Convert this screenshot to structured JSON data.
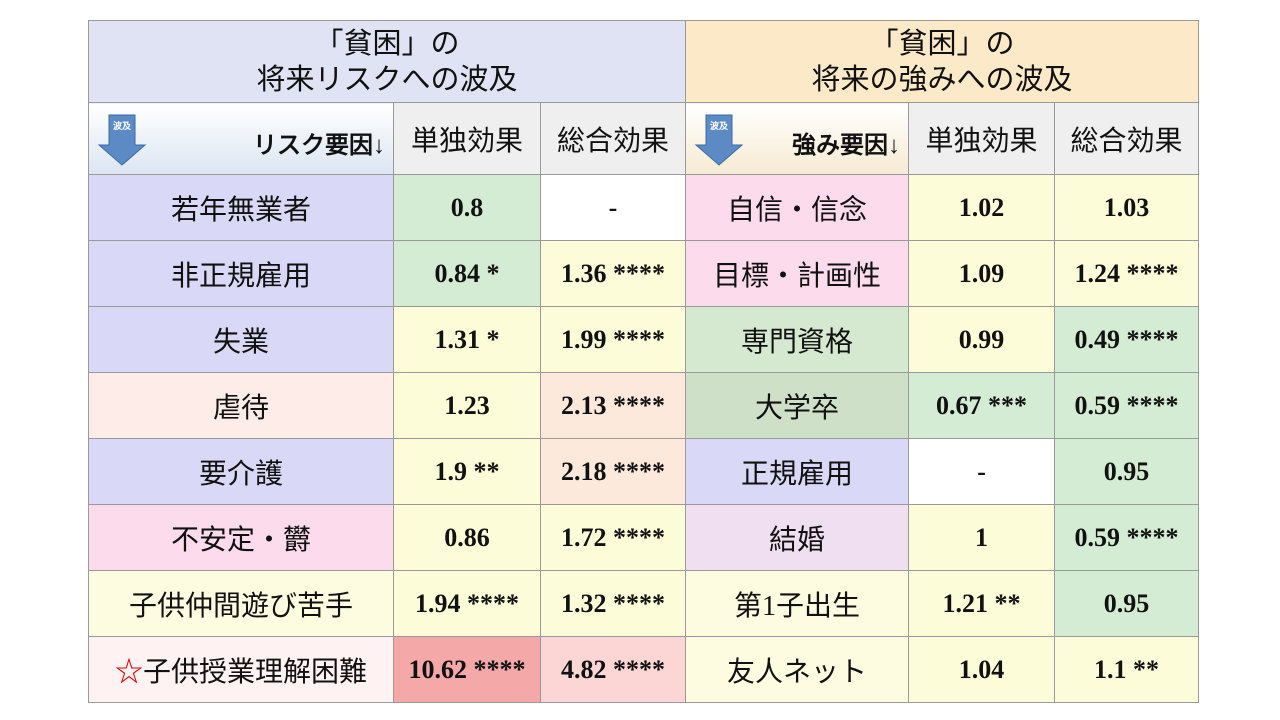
{
  "header": {
    "left_title": [
      "「貧困」の",
      "将来リスクへの波及"
    ],
    "right_title": [
      "「貧困」の",
      "将来の強みへの波及"
    ]
  },
  "subheader": {
    "left_icon": "波及",
    "left_factor": "リスク要因↓",
    "left_solo": "単独効果",
    "left_total": "総合効果",
    "right_icon": "波及",
    "right_factor": "強み要因↓",
    "right_solo": "単独効果",
    "right_total": "総合効果"
  },
  "table": {
    "rows": [
      {
        "cells": [
          "若年無業者",
          "0.8",
          "-",
          "自信・信念",
          "1.02",
          "1.03"
        ]
      },
      {
        "cells": [
          "非正規雇用",
          "0.84 *",
          "1.36 ****",
          "目標・計画性",
          "1.09",
          "1.24 ****"
        ]
      },
      {
        "cells": [
          "失業",
          "1.31 *",
          "1.99 ****",
          "専門資格",
          "0.99",
          "0.49 ****"
        ]
      },
      {
        "cells": [
          "虐待",
          "1.23",
          "2.13 ****",
          "大学卒",
          "0.67 ***",
          "0.59 ****"
        ]
      },
      {
        "cells": [
          "要介護",
          "1.9 **",
          "2.18 ****",
          "正規雇用",
          "-",
          "0.95"
        ]
      },
      {
        "cells": [
          "不安定・欝",
          "0.86",
          "1.72 ****",
          "結婚",
          "1",
          "0.59 ****"
        ]
      },
      {
        "cells": [
          "子供仲間遊び苦手",
          "1.94 ****",
          "1.32 ****",
          "第1子出生",
          "1.21 **",
          "0.95"
        ]
      },
      {
        "cells": [
          "子供授業理解困難",
          "10.62 ****",
          "4.82 ****",
          "友人ネット",
          "1.04",
          "1.1 **"
        ],
        "mark": "☆"
      }
    ]
  }
}
